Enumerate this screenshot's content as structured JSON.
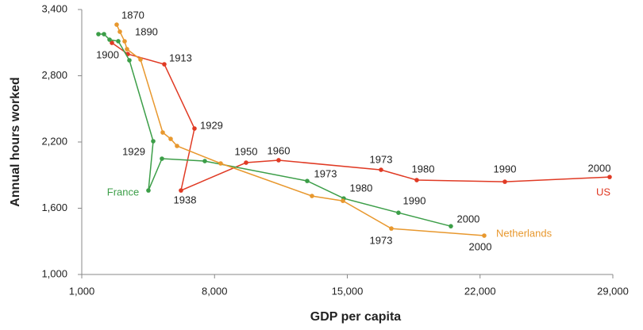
{
  "chart_data": {
    "type": "line",
    "x_label": "GDP per capita",
    "y_label": "Annual hours worked",
    "xlim": [
      1000,
      29000
    ],
    "xticks": [
      {
        "value": 1000,
        "label": "1,000"
      },
      {
        "value": 8000,
        "label": "8,000"
      },
      {
        "value": 15000,
        "label": "15,000"
      },
      {
        "value": 22000,
        "label": "22,000"
      },
      {
        "value": 29000,
        "label": "29,000"
      }
    ],
    "ylim": [
      1000,
      3400
    ],
    "yticks": [
      {
        "value": 1000,
        "label": "1,000"
      },
      {
        "value": 1600,
        "label": "1,600"
      },
      {
        "value": 2200,
        "label": "2,200"
      },
      {
        "value": 2800,
        "label": "2,800"
      },
      {
        "value": 3400,
        "label": "3,400"
      }
    ],
    "grid": false,
    "series": [
      {
        "name": "US",
        "color": "#e03a24",
        "x": [
          2590,
          3427,
          5352,
          6943,
          6231,
          9663,
          11379,
          16778,
          18661,
          23307,
          28831
        ],
        "values": [
          3098,
          2997,
          2904,
          2322,
          1761,
          2013,
          2035,
          1948,
          1855,
          1840,
          1883
        ],
        "labels": [
          null,
          "1900",
          "1913",
          "1929",
          "1938",
          "1950",
          "1960",
          "1973",
          "1980",
          "1990",
          "2000"
        ]
      },
      {
        "name": "France",
        "color": "#3c9e48",
        "x": [
          1879,
          2172,
          2465,
          2925,
          3511,
          4767,
          4515,
          5227,
          7487,
          12885,
          14810,
          17698,
          20460
        ],
        "values": [
          3177,
          3177,
          3127,
          3113,
          2940,
          2207,
          1761,
          2049,
          2027,
          1847,
          1689,
          1559,
          1437
        ],
        "labels": [
          null,
          null,
          null,
          null,
          null,
          "1929",
          null,
          null,
          null,
          "1973",
          "1980",
          "1990",
          "2000"
        ]
      },
      {
        "name": "Netherlands",
        "color": "#e8982e",
        "x": [
          2841,
          3009,
          3260,
          3385,
          4097,
          5269,
          5687,
          6022,
          8324,
          13137,
          14769,
          17322,
          22219
        ],
        "values": [
          3263,
          3199,
          3112,
          3041,
          2947,
          2286,
          2228,
          2164,
          2006,
          1711,
          1667,
          1416,
          1352
        ],
        "labels": [
          "1870",
          null,
          "1890",
          null,
          null,
          null,
          null,
          null,
          null,
          null,
          null,
          "1973",
          "2000"
        ]
      }
    ]
  }
}
